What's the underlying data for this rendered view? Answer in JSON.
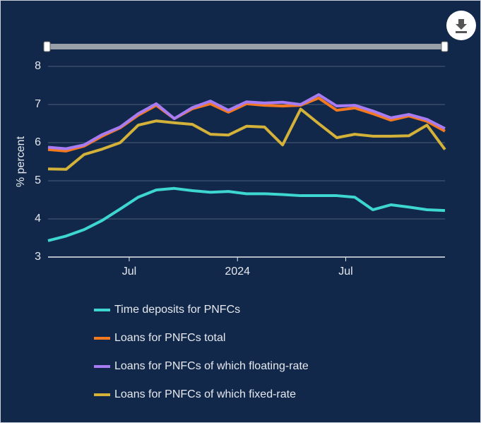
{
  "chart_data": {
    "type": "line",
    "y_label": "% percent",
    "categories": [
      null,
      null,
      null,
      null,
      "Jul",
      null,
      null,
      null,
      null,
      null,
      "2024",
      null,
      null,
      null,
      null,
      null,
      "Jul",
      null,
      null,
      null,
      null,
      null,
      null
    ],
    "ylim": [
      3,
      8
    ],
    "yticks": [
      3,
      4,
      5,
      6,
      7,
      8
    ],
    "grid": true,
    "series": [
      {
        "name": "Time deposits for PNFCs",
        "color": "#3dd6d0",
        "values": [
          3.43,
          3.55,
          3.72,
          3.96,
          4.26,
          4.57,
          4.76,
          4.8,
          4.74,
          4.7,
          4.72,
          4.66,
          4.66,
          4.64,
          4.61,
          4.61,
          4.61,
          4.57,
          4.24,
          4.37,
          4.31,
          4.24,
          4.22
        ]
      },
      {
        "name": "Loans for PNFCs total",
        "color": "#f47920",
        "values": [
          5.82,
          5.78,
          5.91,
          6.17,
          6.39,
          6.72,
          6.98,
          6.63,
          6.89,
          7.02,
          6.8,
          7.02,
          6.98,
          6.96,
          6.98,
          7.17,
          6.85,
          6.91,
          6.76,
          6.59,
          6.7,
          6.56,
          6.3
        ]
      },
      {
        "name": "Loans for PNFCs of which floating-rate",
        "color": "#a77bf3",
        "values": [
          5.88,
          5.84,
          5.94,
          6.21,
          6.41,
          6.76,
          7.02,
          6.63,
          6.92,
          7.09,
          6.85,
          7.07,
          7.04,
          7.06,
          7.0,
          7.26,
          6.96,
          6.98,
          6.83,
          6.65,
          6.74,
          6.61,
          6.37
        ]
      },
      {
        "name": "Loans for PNFCs of which fixed-rate",
        "color": "#d4b23a",
        "values": [
          5.31,
          5.3,
          5.69,
          5.83,
          6.0,
          6.46,
          6.57,
          6.52,
          6.48,
          6.22,
          6.2,
          6.43,
          6.41,
          5.94,
          6.88,
          6.5,
          6.13,
          6.22,
          6.17,
          6.17,
          6.18,
          6.46,
          5.82
        ]
      }
    ]
  }
}
